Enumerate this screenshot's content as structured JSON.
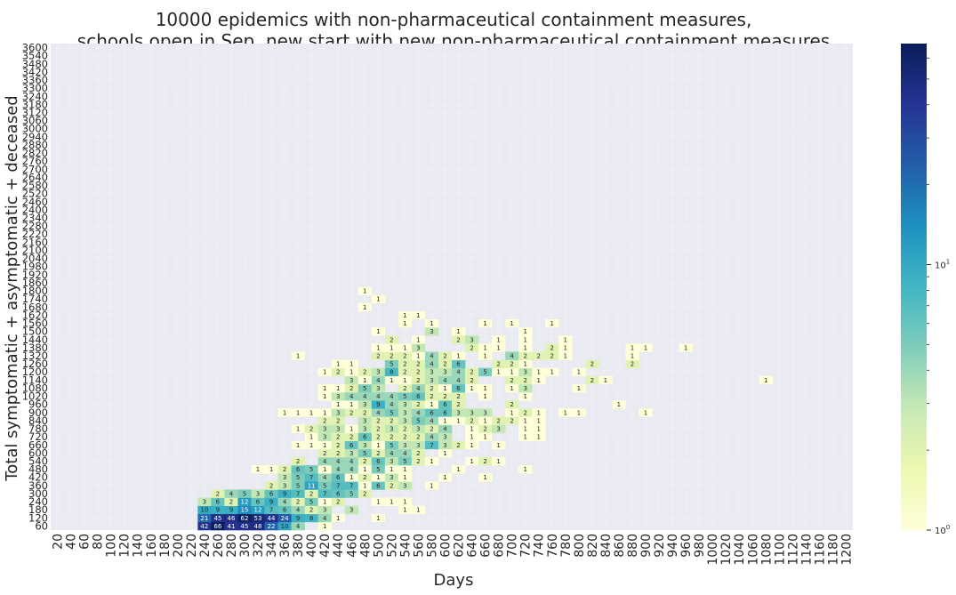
{
  "chart_data": {
    "type": "heatmap",
    "title": [
      "10000 epidemics with non-pharmaceutical containment measures,",
      "schools open in Sep, new start with new non-pharmaceutical containment measures"
    ],
    "xlabel": "Days",
    "ylabel": "Total symptomatic + asymptomatic + deceased",
    "x_start": 20,
    "x_step": 20,
    "x_count": 60,
    "y_start": 60,
    "y_step": 60,
    "y_count": 60,
    "colorscale": "YlGnBu",
    "log_scale": true,
    "vmin": 1,
    "vmax": 68,
    "colorbar_ticks": [
      {
        "value": 1,
        "label_base": "10",
        "label_exp": "0"
      },
      {
        "value": 10,
        "label_base": "10",
        "label_exp": "1"
      }
    ],
    "background_label": "0",
    "cells": [
      [
        240,
        60,
        42
      ],
      [
        260,
        60,
        66
      ],
      [
        280,
        60,
        41
      ],
      [
        300,
        60,
        45
      ],
      [
        320,
        60,
        48
      ],
      [
        340,
        60,
        22
      ],
      [
        360,
        60,
        10
      ],
      [
        380,
        60,
        4
      ],
      [
        420,
        60,
        1
      ],
      [
        240,
        120,
        21
      ],
      [
        260,
        120,
        45
      ],
      [
        280,
        120,
        46
      ],
      [
        300,
        120,
        62
      ],
      [
        320,
        120,
        53
      ],
      [
        340,
        120,
        44
      ],
      [
        360,
        120,
        24
      ],
      [
        380,
        120,
        9
      ],
      [
        400,
        120,
        8
      ],
      [
        420,
        120,
        4
      ],
      [
        440,
        120,
        1
      ],
      [
        500,
        120,
        1
      ],
      [
        240,
        180,
        10
      ],
      [
        260,
        180,
        9
      ],
      [
        280,
        180,
        9
      ],
      [
        300,
        180,
        15
      ],
      [
        320,
        180,
        12
      ],
      [
        340,
        180,
        7
      ],
      [
        360,
        180,
        6
      ],
      [
        380,
        180,
        4
      ],
      [
        400,
        180,
        2
      ],
      [
        420,
        180,
        3
      ],
      [
        460,
        180,
        3
      ],
      [
        540,
        180,
        1
      ],
      [
        560,
        180,
        1
      ],
      [
        240,
        240,
        3
      ],
      [
        260,
        240,
        6
      ],
      [
        280,
        240,
        2
      ],
      [
        300,
        240,
        12
      ],
      [
        320,
        240,
        6
      ],
      [
        340,
        240,
        9
      ],
      [
        360,
        240,
        4
      ],
      [
        380,
        240,
        2
      ],
      [
        400,
        240,
        5
      ],
      [
        420,
        240,
        1
      ],
      [
        440,
        240,
        2
      ],
      [
        500,
        240,
        1
      ],
      [
        520,
        240,
        1
      ],
      [
        540,
        240,
        1
      ],
      [
        260,
        300,
        2
      ],
      [
        280,
        300,
        4
      ],
      [
        300,
        300,
        5
      ],
      [
        320,
        300,
        3
      ],
      [
        340,
        300,
        6
      ],
      [
        360,
        300,
        9
      ],
      [
        380,
        300,
        7
      ],
      [
        400,
        300,
        2
      ],
      [
        420,
        300,
        7
      ],
      [
        440,
        300,
        6
      ],
      [
        460,
        300,
        5
      ],
      [
        480,
        300,
        2
      ],
      [
        340,
        360,
        2
      ],
      [
        360,
        360,
        3
      ],
      [
        380,
        360,
        5
      ],
      [
        400,
        360,
        11
      ],
      [
        420,
        360,
        5
      ],
      [
        440,
        360,
        7
      ],
      [
        460,
        360,
        7
      ],
      [
        480,
        360,
        1
      ],
      [
        500,
        360,
        6
      ],
      [
        520,
        360,
        2
      ],
      [
        540,
        360,
        3
      ],
      [
        580,
        360,
        1
      ],
      [
        360,
        420,
        3
      ],
      [
        380,
        420,
        5
      ],
      [
        400,
        420,
        7
      ],
      [
        420,
        420,
        4
      ],
      [
        440,
        420,
        6
      ],
      [
        460,
        420,
        1
      ],
      [
        480,
        420,
        2
      ],
      [
        500,
        420,
        1
      ],
      [
        520,
        420,
        3
      ],
      [
        540,
        420,
        1
      ],
      [
        600,
        420,
        1
      ],
      [
        660,
        420,
        1
      ],
      [
        320,
        480,
        1
      ],
      [
        340,
        480,
        1
      ],
      [
        360,
        480,
        2
      ],
      [
        380,
        480,
        6
      ],
      [
        400,
        480,
        5
      ],
      [
        420,
        480,
        1
      ],
      [
        440,
        480,
        4
      ],
      [
        460,
        480,
        4
      ],
      [
        480,
        480,
        1
      ],
      [
        500,
        480,
        5
      ],
      [
        520,
        480,
        1
      ],
      [
        540,
        480,
        1
      ],
      [
        620,
        480,
        1
      ],
      [
        720,
        480,
        1
      ],
      [
        380,
        540,
        2
      ],
      [
        420,
        540,
        4
      ],
      [
        440,
        540,
        4
      ],
      [
        460,
        540,
        4
      ],
      [
        480,
        540,
        2
      ],
      [
        500,
        540,
        6
      ],
      [
        520,
        540,
        3
      ],
      [
        540,
        540,
        5
      ],
      [
        560,
        540,
        2
      ],
      [
        580,
        540,
        1
      ],
      [
        640,
        540,
        1
      ],
      [
        660,
        540,
        2
      ],
      [
        680,
        540,
        1
      ],
      [
        420,
        600,
        2
      ],
      [
        440,
        600,
        2
      ],
      [
        460,
        600,
        3
      ],
      [
        480,
        600,
        5
      ],
      [
        500,
        600,
        2
      ],
      [
        520,
        600,
        4
      ],
      [
        540,
        600,
        4
      ],
      [
        560,
        600,
        2
      ],
      [
        600,
        600,
        1
      ],
      [
        380,
        660,
        1
      ],
      [
        400,
        660,
        1
      ],
      [
        420,
        660,
        1
      ],
      [
        440,
        660,
        2
      ],
      [
        460,
        660,
        6
      ],
      [
        480,
        660,
        3
      ],
      [
        500,
        660,
        1
      ],
      [
        520,
        660,
        5
      ],
      [
        540,
        660,
        3
      ],
      [
        560,
        660,
        3
      ],
      [
        580,
        660,
        7
      ],
      [
        600,
        660,
        3
      ],
      [
        620,
        660,
        2
      ],
      [
        640,
        660,
        1
      ],
      [
        680,
        660,
        1
      ],
      [
        400,
        720,
        1
      ],
      [
        420,
        720,
        3
      ],
      [
        440,
        720,
        2
      ],
      [
        460,
        720,
        2
      ],
      [
        480,
        720,
        6
      ],
      [
        500,
        720,
        2
      ],
      [
        520,
        720,
        2
      ],
      [
        540,
        720,
        2
      ],
      [
        560,
        720,
        2
      ],
      [
        580,
        720,
        4
      ],
      [
        600,
        720,
        3
      ],
      [
        640,
        720,
        1
      ],
      [
        660,
        720,
        1
      ],
      [
        720,
        720,
        1
      ],
      [
        740,
        720,
        1
      ],
      [
        380,
        780,
        1
      ],
      [
        400,
        780,
        2
      ],
      [
        420,
        780,
        3
      ],
      [
        440,
        780,
        3
      ],
      [
        460,
        780,
        1
      ],
      [
        480,
        780,
        3
      ],
      [
        500,
        780,
        2
      ],
      [
        520,
        780,
        3
      ],
      [
        540,
        780,
        2
      ],
      [
        560,
        780,
        3
      ],
      [
        580,
        780,
        2
      ],
      [
        600,
        780,
        4
      ],
      [
        640,
        780,
        1
      ],
      [
        660,
        780,
        2
      ],
      [
        680,
        780,
        3
      ],
      [
        720,
        780,
        1
      ],
      [
        740,
        780,
        1
      ],
      [
        420,
        840,
        2
      ],
      [
        440,
        840,
        2
      ],
      [
        480,
        840,
        3
      ],
      [
        500,
        840,
        2
      ],
      [
        520,
        840,
        2
      ],
      [
        540,
        840,
        3
      ],
      [
        560,
        840,
        5
      ],
      [
        580,
        840,
        4
      ],
      [
        600,
        840,
        1
      ],
      [
        620,
        840,
        1
      ],
      [
        640,
        840,
        2
      ],
      [
        660,
        840,
        1
      ],
      [
        680,
        840,
        2
      ],
      [
        700,
        840,
        2
      ],
      [
        720,
        840,
        1
      ],
      [
        740,
        840,
        1
      ],
      [
        360,
        900,
        1
      ],
      [
        380,
        900,
        1
      ],
      [
        400,
        900,
        1
      ],
      [
        420,
        900,
        1
      ],
      [
        440,
        900,
        3
      ],
      [
        460,
        900,
        2
      ],
      [
        480,
        900,
        2
      ],
      [
        500,
        900,
        4
      ],
      [
        520,
        900,
        5
      ],
      [
        540,
        900,
        3
      ],
      [
        560,
        900,
        4
      ],
      [
        580,
        900,
        6
      ],
      [
        600,
        900,
        6
      ],
      [
        620,
        900,
        3
      ],
      [
        640,
        900,
        3
      ],
      [
        660,
        900,
        3
      ],
      [
        700,
        900,
        1
      ],
      [
        720,
        900,
        2
      ],
      [
        740,
        900,
        1
      ],
      [
        780,
        900,
        1
      ],
      [
        800,
        900,
        1
      ],
      [
        900,
        900,
        1
      ],
      [
        440,
        960,
        1
      ],
      [
        460,
        960,
        1
      ],
      [
        480,
        960,
        3
      ],
      [
        500,
        960,
        9
      ],
      [
        520,
        960,
        4
      ],
      [
        540,
        960,
        3
      ],
      [
        560,
        960,
        2
      ],
      [
        580,
        960,
        1
      ],
      [
        600,
        960,
        6
      ],
      [
        620,
        960,
        2
      ],
      [
        700,
        960,
        2
      ],
      [
        860,
        960,
        1
      ],
      [
        420,
        1020,
        1
      ],
      [
        440,
        1020,
        3
      ],
      [
        460,
        1020,
        4
      ],
      [
        480,
        1020,
        4
      ],
      [
        500,
        1020,
        4
      ],
      [
        520,
        1020,
        4
      ],
      [
        540,
        1020,
        5
      ],
      [
        560,
        1020,
        6
      ],
      [
        580,
        1020,
        2
      ],
      [
        600,
        1020,
        2
      ],
      [
        620,
        1020,
        2
      ],
      [
        660,
        1020,
        1
      ],
      [
        720,
        1020,
        1
      ],
      [
        420,
        1080,
        1
      ],
      [
        440,
        1080,
        1
      ],
      [
        460,
        1080,
        2
      ],
      [
        480,
        1080,
        5
      ],
      [
        500,
        1080,
        3
      ],
      [
        540,
        1080,
        2
      ],
      [
        560,
        1080,
        4
      ],
      [
        580,
        1080,
        2
      ],
      [
        600,
        1080,
        1
      ],
      [
        620,
        1080,
        6
      ],
      [
        640,
        1080,
        1
      ],
      [
        660,
        1080,
        1
      ],
      [
        700,
        1080,
        1
      ],
      [
        720,
        1080,
        3
      ],
      [
        800,
        1080,
        1
      ],
      [
        460,
        1140,
        3
      ],
      [
        480,
        1140,
        1
      ],
      [
        500,
        1140,
        4
      ],
      [
        520,
        1140,
        1
      ],
      [
        540,
        1140,
        1
      ],
      [
        560,
        1140,
        2
      ],
      [
        580,
        1140,
        3
      ],
      [
        600,
        1140,
        4
      ],
      [
        620,
        1140,
        4
      ],
      [
        640,
        1140,
        2
      ],
      [
        700,
        1140,
        2
      ],
      [
        720,
        1140,
        2
      ],
      [
        740,
        1140,
        1
      ],
      [
        820,
        1140,
        2
      ],
      [
        840,
        1140,
        1
      ],
      [
        1080,
        1140,
        1
      ],
      [
        420,
        1200,
        1
      ],
      [
        440,
        1200,
        2
      ],
      [
        460,
        1200,
        1
      ],
      [
        480,
        1200,
        2
      ],
      [
        500,
        1200,
        3
      ],
      [
        520,
        1200,
        8
      ],
      [
        540,
        1200,
        2
      ],
      [
        560,
        1200,
        2
      ],
      [
        580,
        1200,
        3
      ],
      [
        600,
        1200,
        3
      ],
      [
        620,
        1200,
        4
      ],
      [
        640,
        1200,
        2
      ],
      [
        660,
        1200,
        5
      ],
      [
        680,
        1200,
        1
      ],
      [
        700,
        1200,
        1
      ],
      [
        720,
        1200,
        3
      ],
      [
        740,
        1200,
        1
      ],
      [
        760,
        1200,
        1
      ],
      [
        800,
        1200,
        1
      ],
      [
        440,
        1260,
        1
      ],
      [
        460,
        1260,
        1
      ],
      [
        520,
        1260,
        5
      ],
      [
        540,
        1260,
        2
      ],
      [
        560,
        1260,
        2
      ],
      [
        580,
        1260,
        4
      ],
      [
        600,
        1260,
        2
      ],
      [
        620,
        1260,
        6
      ],
      [
        680,
        1260,
        2
      ],
      [
        700,
        1260,
        2
      ],
      [
        720,
        1260,
        1
      ],
      [
        820,
        1260,
        2
      ],
      [
        880,
        1260,
        2
      ],
      [
        380,
        1320,
        1
      ],
      [
        500,
        1320,
        2
      ],
      [
        520,
        1320,
        2
      ],
      [
        540,
        1320,
        2
      ],
      [
        560,
        1320,
        1
      ],
      [
        580,
        1320,
        4
      ],
      [
        600,
        1320,
        2
      ],
      [
        620,
        1320,
        1
      ],
      [
        660,
        1320,
        1
      ],
      [
        700,
        1320,
        4
      ],
      [
        720,
        1320,
        2
      ],
      [
        740,
        1320,
        2
      ],
      [
        760,
        1320,
        2
      ],
      [
        780,
        1320,
        1
      ],
      [
        880,
        1320,
        1
      ],
      [
        500,
        1380,
        1
      ],
      [
        520,
        1380,
        1
      ],
      [
        540,
        1380,
        1
      ],
      [
        560,
        1380,
        3
      ],
      [
        640,
        1380,
        2
      ],
      [
        660,
        1380,
        1
      ],
      [
        680,
        1380,
        1
      ],
      [
        720,
        1380,
        1
      ],
      [
        760,
        1380,
        2
      ],
      [
        780,
        1380,
        1
      ],
      [
        880,
        1380,
        1
      ],
      [
        900,
        1380,
        1
      ],
      [
        960,
        1380,
        1
      ],
      [
        520,
        1440,
        2
      ],
      [
        560,
        1440,
        1
      ],
      [
        620,
        1440,
        2
      ],
      [
        640,
        1440,
        3
      ],
      [
        680,
        1440,
        1
      ],
      [
        720,
        1440,
        1
      ],
      [
        780,
        1440,
        1
      ],
      [
        500,
        1500,
        1
      ],
      [
        580,
        1500,
        3
      ],
      [
        620,
        1500,
        1
      ],
      [
        720,
        1500,
        1
      ],
      [
        540,
        1560,
        1
      ],
      [
        580,
        1560,
        1
      ],
      [
        660,
        1560,
        1
      ],
      [
        700,
        1560,
        1
      ],
      [
        760,
        1560,
        1
      ],
      [
        540,
        1620,
        1
      ],
      [
        560,
        1620,
        1
      ],
      [
        480,
        1680,
        1
      ],
      [
        500,
        1740,
        1
      ],
      [
        480,
        1800,
        1
      ]
    ]
  }
}
